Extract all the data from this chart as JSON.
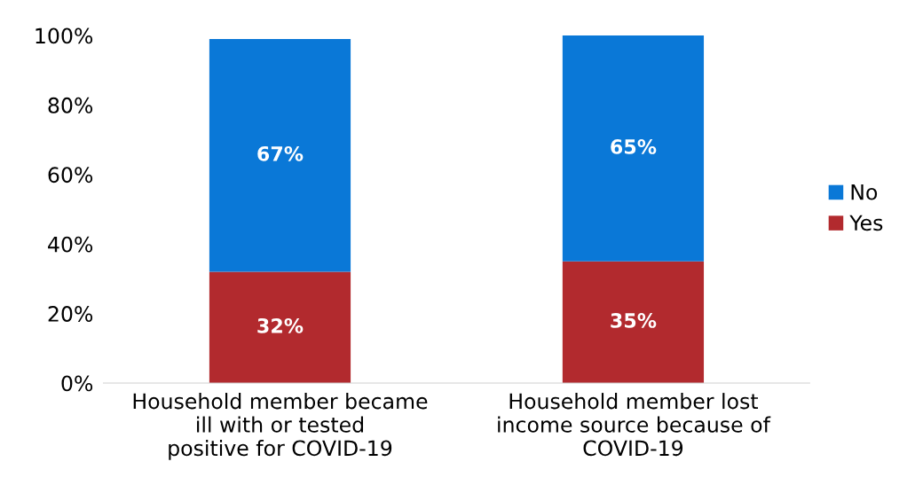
{
  "chart_data": {
    "type": "bar",
    "stacked": true,
    "categories": [
      "Household member became ill with or tested positive for COVID-19",
      "Household member lost income source because of COVID-19"
    ],
    "series": [
      {
        "name": "Yes",
        "color": "#b22a2e",
        "values": [
          32,
          35
        ],
        "value_labels": [
          "32%",
          "35%"
        ]
      },
      {
        "name": "No",
        "color": "#0a78d7",
        "values": [
          67,
          65
        ],
        "value_labels": [
          "67%",
          "65%"
        ]
      }
    ],
    "ylim": [
      0,
      100
    ],
    "yticks": [
      {
        "value": 0,
        "label": "0%"
      },
      {
        "value": 20,
        "label": "20%"
      },
      {
        "value": 40,
        "label": "40%"
      },
      {
        "value": 60,
        "label": "60%"
      },
      {
        "value": 80,
        "label": "80%"
      },
      {
        "value": 100,
        "label": "100%"
      }
    ],
    "grid": false,
    "legend": "right"
  }
}
